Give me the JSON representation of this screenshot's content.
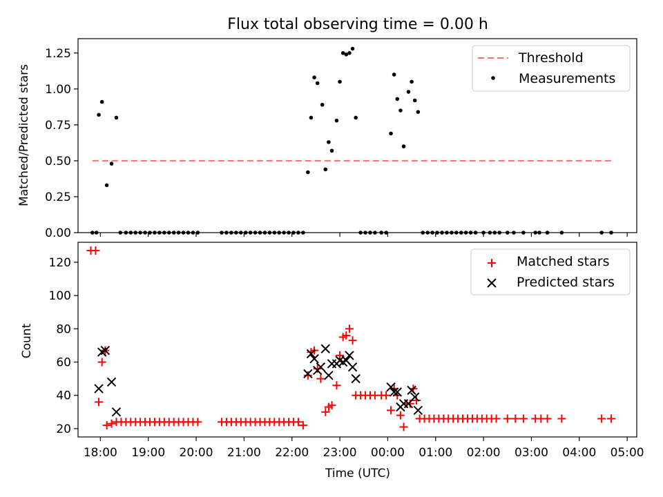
{
  "chart_data": [
    {
      "type": "scatter",
      "title": "Flux total observing time = 0.00 h",
      "xlabel": "",
      "ylabel": "Matched/Predicted stars",
      "xlim": [
        "17:32",
        "05:12"
      ],
      "ylim": [
        0.0,
        1.35
      ],
      "yticks": [
        "0.00",
        "0.25",
        "0.50",
        "0.75",
        "1.00",
        "1.25"
      ],
      "threshold": 0.5,
      "legend_position": "top-right",
      "grid": false,
      "series": [
        {
          "name": "Threshold",
          "style": "dashed-line",
          "color": "#ff6e6e"
        },
        {
          "name": "Measurements",
          "style": "dot",
          "color": "#000000",
          "points": [
            [
              "17:50",
              0.0
            ],
            [
              "17:55",
              0.0
            ],
            [
              "17:58",
              0.82
            ],
            [
              "18:02",
              0.91
            ],
            [
              "18:08",
              0.33
            ],
            [
              "18:14",
              0.48
            ],
            [
              "18:20",
              0.8
            ],
            [
              "18:25",
              0.0
            ],
            [
              "18:32",
              0.0
            ],
            [
              "18:38",
              0.0
            ],
            [
              "18:44",
              0.0
            ],
            [
              "18:50",
              0.0
            ],
            [
              "18:56",
              0.0
            ],
            [
              "19:02",
              0.0
            ],
            [
              "19:08",
              0.0
            ],
            [
              "19:14",
              0.0
            ],
            [
              "19:20",
              0.0
            ],
            [
              "19:26",
              0.0
            ],
            [
              "19:32",
              0.0
            ],
            [
              "19:38",
              0.0
            ],
            [
              "19:44",
              0.0
            ],
            [
              "19:50",
              0.0
            ],
            [
              "19:56",
              0.0
            ],
            [
              "20:02",
              0.0
            ],
            [
              "20:32",
              0.0
            ],
            [
              "20:38",
              0.0
            ],
            [
              "20:44",
              0.0
            ],
            [
              "20:50",
              0.0
            ],
            [
              "20:56",
              0.0
            ],
            [
              "21:02",
              0.0
            ],
            [
              "21:08",
              0.0
            ],
            [
              "21:14",
              0.0
            ],
            [
              "21:20",
              0.0
            ],
            [
              "21:26",
              0.0
            ],
            [
              "21:32",
              0.0
            ],
            [
              "21:38",
              0.0
            ],
            [
              "21:44",
              0.0
            ],
            [
              "21:50",
              0.0
            ],
            [
              "21:56",
              0.0
            ],
            [
              "22:02",
              0.0
            ],
            [
              "22:08",
              0.0
            ],
            [
              "22:14",
              0.0
            ],
            [
              "22:20",
              0.42
            ],
            [
              "22:24",
              0.8
            ],
            [
              "22:28",
              1.08
            ],
            [
              "22:32",
              1.04
            ],
            [
              "22:38",
              0.89
            ],
            [
              "22:42",
              0.44
            ],
            [
              "22:46",
              0.63
            ],
            [
              "22:50",
              0.57
            ],
            [
              "22:56",
              0.78
            ],
            [
              "23:00",
              1.05
            ],
            [
              "23:04",
              1.25
            ],
            [
              "23:08",
              1.24
            ],
            [
              "23:12",
              1.25
            ],
            [
              "23:16",
              1.28
            ],
            [
              "23:20",
              0.8
            ],
            [
              "23:26",
              0.0
            ],
            [
              "23:32",
              0.0
            ],
            [
              "23:38",
              0.0
            ],
            [
              "23:44",
              0.0
            ],
            [
              "23:52",
              0.0
            ],
            [
              "23:58",
              0.0
            ],
            [
              "00:04",
              0.69
            ],
            [
              "00:08",
              1.1
            ],
            [
              "00:12",
              0.93
            ],
            [
              "00:16",
              0.85
            ],
            [
              "00:20",
              0.6
            ],
            [
              "00:26",
              0.98
            ],
            [
              "00:30",
              1.05
            ],
            [
              "00:34",
              0.92
            ],
            [
              "00:38",
              0.84
            ],
            [
              "00:44",
              0.0
            ],
            [
              "00:50",
              0.0
            ],
            [
              "00:56",
              0.0
            ],
            [
              "01:02",
              0.0
            ],
            [
              "01:08",
              0.0
            ],
            [
              "01:14",
              0.0
            ],
            [
              "01:20",
              0.0
            ],
            [
              "01:26",
              0.0
            ],
            [
              "01:32",
              0.0
            ],
            [
              "01:38",
              0.0
            ],
            [
              "01:44",
              0.0
            ],
            [
              "01:50",
              0.0
            ],
            [
              "02:00",
              0.0
            ],
            [
              "02:08",
              0.0
            ],
            [
              "02:14",
              0.0
            ],
            [
              "02:20",
              0.0
            ],
            [
              "02:30",
              0.0
            ],
            [
              "02:38",
              0.0
            ],
            [
              "02:50",
              0.0
            ],
            [
              "03:05",
              0.0
            ],
            [
              "03:10",
              0.0
            ],
            [
              "03:20",
              0.0
            ],
            [
              "03:38",
              0.0
            ],
            [
              "04:28",
              0.0
            ],
            [
              "04:40",
              0.0
            ]
          ]
        }
      ]
    },
    {
      "type": "scatter",
      "title": "",
      "xlabel": "Time (UTC)",
      "ylabel": "Count",
      "xlim": [
        "17:32",
        "05:12"
      ],
      "ylim": [
        15,
        132
      ],
      "yticks": [
        "20",
        "40",
        "60",
        "80",
        "100",
        "120"
      ],
      "xticks": [
        "18:00",
        "19:00",
        "20:00",
        "21:00",
        "22:00",
        "23:00",
        "00:00",
        "01:00",
        "02:00",
        "03:00",
        "04:00",
        "05:00"
      ],
      "legend_position": "top-right",
      "grid": false,
      "series": [
        {
          "name": "Matched stars",
          "marker": "+",
          "color": "#ff0000",
          "points": [
            [
              "17:48",
              127
            ],
            [
              "17:54",
              127
            ],
            [
              "17:58",
              36
            ],
            [
              "18:02",
              60
            ],
            [
              "18:06",
              67
            ],
            [
              "18:08",
              22
            ],
            [
              "18:14",
              23
            ],
            [
              "18:20",
              24
            ],
            [
              "18:26",
              24
            ],
            [
              "18:32",
              24
            ],
            [
              "18:38",
              24
            ],
            [
              "18:44",
              24
            ],
            [
              "18:50",
              24
            ],
            [
              "18:56",
              24
            ],
            [
              "19:02",
              24
            ],
            [
              "19:08",
              24
            ],
            [
              "19:14",
              24
            ],
            [
              "19:20",
              24
            ],
            [
              "19:26",
              24
            ],
            [
              "19:32",
              24
            ],
            [
              "19:38",
              24
            ],
            [
              "19:44",
              24
            ],
            [
              "19:50",
              24
            ],
            [
              "19:56",
              24
            ],
            [
              "20:02",
              24
            ],
            [
              "20:32",
              24
            ],
            [
              "20:38",
              24
            ],
            [
              "20:44",
              24
            ],
            [
              "20:50",
              24
            ],
            [
              "20:56",
              24
            ],
            [
              "21:02",
              24
            ],
            [
              "21:08",
              24
            ],
            [
              "21:14",
              24
            ],
            [
              "21:20",
              24
            ],
            [
              "21:26",
              24
            ],
            [
              "21:32",
              24
            ],
            [
              "21:38",
              24
            ],
            [
              "21:44",
              24
            ],
            [
              "21:50",
              24
            ],
            [
              "21:56",
              24
            ],
            [
              "22:02",
              24
            ],
            [
              "22:08",
              24
            ],
            [
              "22:14",
              22
            ],
            [
              "22:20",
              52
            ],
            [
              "22:24",
              66
            ],
            [
              "22:28",
              67
            ],
            [
              "22:32",
              56
            ],
            [
              "22:36",
              50
            ],
            [
              "22:42",
              30
            ],
            [
              "22:46",
              33
            ],
            [
              "22:50",
              34
            ],
            [
              "22:56",
              46
            ],
            [
              "23:00",
              64
            ],
            [
              "23:04",
              75
            ],
            [
              "23:08",
              76
            ],
            [
              "23:12",
              80
            ],
            [
              "23:16",
              73
            ],
            [
              "23:20",
              40
            ],
            [
              "23:26",
              40
            ],
            [
              "23:32",
              40
            ],
            [
              "23:38",
              40
            ],
            [
              "23:44",
              40
            ],
            [
              "23:52",
              40
            ],
            [
              "23:58",
              40
            ],
            [
              "00:04",
              31
            ],
            [
              "00:08",
              44
            ],
            [
              "00:12",
              40
            ],
            [
              "00:16",
              28
            ],
            [
              "00:20",
              21
            ],
            [
              "00:24",
              35
            ],
            [
              "00:28",
              35
            ],
            [
              "00:32",
              44
            ],
            [
              "00:36",
              37
            ],
            [
              "00:40",
              26
            ],
            [
              "00:46",
              26
            ],
            [
              "00:52",
              26
            ],
            [
              "00:58",
              26
            ],
            [
              "01:04",
              26
            ],
            [
              "01:10",
              26
            ],
            [
              "01:16",
              26
            ],
            [
              "01:22",
              26
            ],
            [
              "01:28",
              26
            ],
            [
              "01:34",
              26
            ],
            [
              "01:40",
              26
            ],
            [
              "01:46",
              26
            ],
            [
              "01:52",
              26
            ],
            [
              "01:58",
              26
            ],
            [
              "02:04",
              26
            ],
            [
              "02:10",
              26
            ],
            [
              "02:16",
              26
            ],
            [
              "02:30",
              26
            ],
            [
              "02:40",
              26
            ],
            [
              "02:50",
              26
            ],
            [
              "03:05",
              26
            ],
            [
              "03:12",
              26
            ],
            [
              "03:20",
              26
            ],
            [
              "03:38",
              26
            ],
            [
              "04:28",
              26
            ],
            [
              "04:40",
              26
            ]
          ]
        },
        {
          "name": "Predicted stars",
          "marker": "x",
          "color": "#000000",
          "points": [
            [
              "17:58",
              44
            ],
            [
              "18:02",
              66
            ],
            [
              "18:06",
              67
            ],
            [
              "18:14",
              48
            ],
            [
              "18:20",
              30
            ],
            [
              "22:20",
              53
            ],
            [
              "22:24",
              65
            ],
            [
              "22:28",
              62
            ],
            [
              "22:32",
              55
            ],
            [
              "22:36",
              57
            ],
            [
              "22:42",
              68
            ],
            [
              "22:46",
              52
            ],
            [
              "22:50",
              59
            ],
            [
              "22:56",
              59
            ],
            [
              "23:00",
              61
            ],
            [
              "23:04",
              60
            ],
            [
              "23:08",
              61
            ],
            [
              "23:12",
              64
            ],
            [
              "23:16",
              57
            ],
            [
              "23:20",
              50
            ],
            [
              "00:04",
              45
            ],
            [
              "00:08",
              42
            ],
            [
              "00:12",
              42
            ],
            [
              "00:16",
              33
            ],
            [
              "00:20",
              35
            ],
            [
              "00:26",
              35
            ],
            [
              "00:30",
              43
            ],
            [
              "00:34",
              39
            ],
            [
              "00:38",
              31
            ]
          ]
        }
      ]
    }
  ]
}
